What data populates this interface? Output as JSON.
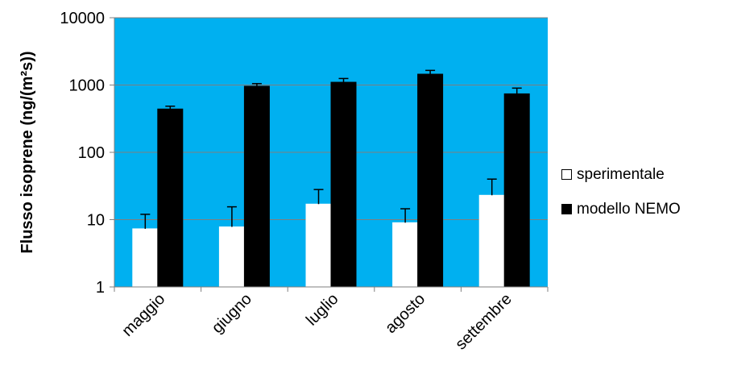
{
  "chart_data": {
    "type": "bar",
    "title": "",
    "xlabel": "",
    "ylabel": "Flusso isoprene (ng/(m²s))",
    "yscale": "log",
    "ylim": [
      1,
      10000
    ],
    "yticks": [
      "1",
      "10",
      "100",
      "1000",
      "10000"
    ],
    "categories": [
      "maggio",
      "giugno",
      "luglio",
      "agosto",
      "settembre"
    ],
    "series": [
      {
        "name": "sperimentale",
        "color": "#ffffff",
        "values": [
          7.3,
          7.8,
          17,
          9,
          23
        ],
        "error_upper": [
          12,
          15.5,
          28,
          14.5,
          40
        ]
      },
      {
        "name": "modello NEMO",
        "color": "#000000",
        "values": [
          440,
          960,
          1100,
          1450,
          740
        ],
        "error_upper": [
          485,
          1050,
          1250,
          1650,
          900
        ]
      }
    ],
    "plot_background": "#00b0f0",
    "gridlines": true,
    "legend_position": "right"
  }
}
